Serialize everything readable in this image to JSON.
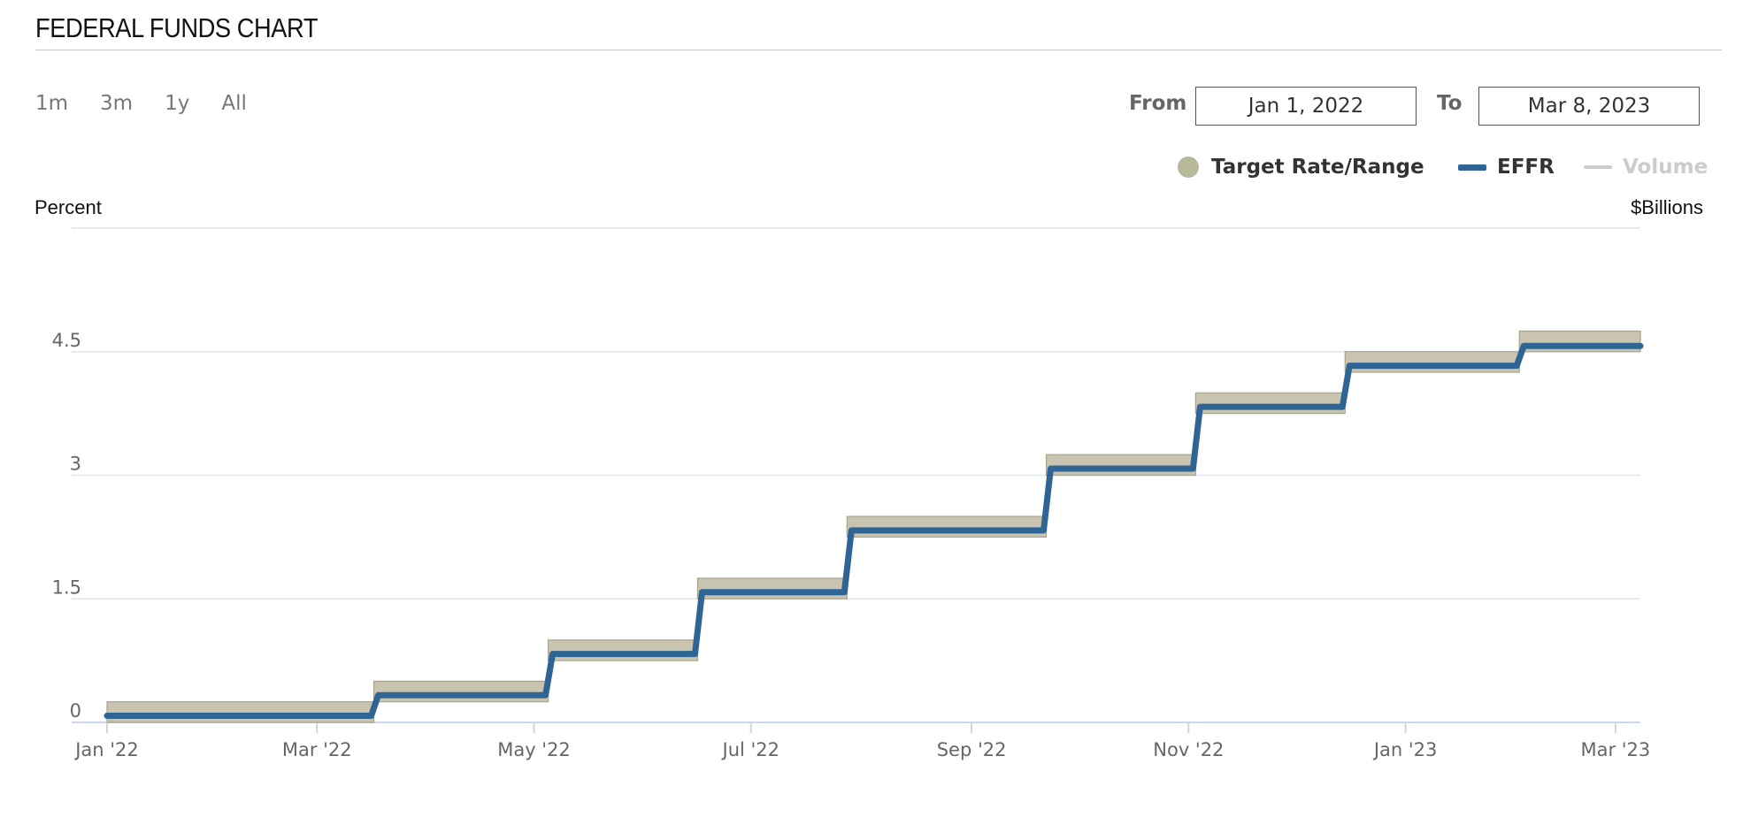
{
  "page": {
    "title": "FEDERAL FUNDS CHART"
  },
  "range_buttons": [
    "1m",
    "3m",
    "1y",
    "All"
  ],
  "date_range": {
    "from_label": "From",
    "from_value": "Jan 1, 2022",
    "to_label": "To",
    "to_value": "Mar 8, 2023"
  },
  "legend": {
    "target": "Target Rate/Range",
    "effr": "EFFR",
    "volume": "Volume"
  },
  "colors": {
    "effr": "#2e6595",
    "target_fill": "#c8c4b0",
    "target_edge": "#a8a48c",
    "grid": "#dfe3ea",
    "axis": "#ccd6eb"
  },
  "chart_data": {
    "type": "line",
    "title": "FEDERAL FUNDS CHART",
    "ylabel_left": "Percent",
    "ylabel_right": "$Billions",
    "y_ticks": [
      0,
      1.5,
      3,
      4.5
    ],
    "ylim": [
      0,
      6
    ],
    "x_range": [
      "2022-01-01",
      "2023-03-08"
    ],
    "x_ticks": [
      {
        "date": "2022-01-01",
        "label": "Jan '22"
      },
      {
        "date": "2022-03-01",
        "label": "Mar '22"
      },
      {
        "date": "2022-05-01",
        "label": "May '22"
      },
      {
        "date": "2022-07-01",
        "label": "Jul '22"
      },
      {
        "date": "2022-09-01",
        "label": "Sep '22"
      },
      {
        "date": "2022-11-01",
        "label": "Nov '22"
      },
      {
        "date": "2023-01-01",
        "label": "Jan '23"
      },
      {
        "date": "2023-03-01",
        "label": "Mar '23"
      }
    ],
    "series": [
      {
        "name": "Target Rate/Range",
        "type": "range",
        "steps": [
          {
            "start": "2022-01-01",
            "low": 0.0,
            "high": 0.25
          },
          {
            "start": "2022-03-17",
            "low": 0.25,
            "high": 0.5
          },
          {
            "start": "2022-05-05",
            "low": 0.75,
            "high": 1.0
          },
          {
            "start": "2022-06-16",
            "low": 1.5,
            "high": 1.75
          },
          {
            "start": "2022-07-28",
            "low": 2.25,
            "high": 2.5
          },
          {
            "start": "2022-09-22",
            "low": 3.0,
            "high": 3.25
          },
          {
            "start": "2022-11-03",
            "low": 3.75,
            "high": 4.0
          },
          {
            "start": "2022-12-15",
            "low": 4.25,
            "high": 4.5
          },
          {
            "start": "2023-02-02",
            "low": 4.5,
            "high": 4.75
          }
        ]
      },
      {
        "name": "EFFR",
        "type": "step",
        "steps": [
          {
            "start": "2022-01-01",
            "value": 0.08
          },
          {
            "start": "2022-03-17",
            "value": 0.33
          },
          {
            "start": "2022-05-05",
            "value": 0.83
          },
          {
            "start": "2022-06-16",
            "value": 1.58
          },
          {
            "start": "2022-07-28",
            "value": 2.33
          },
          {
            "start": "2022-09-22",
            "value": 3.08
          },
          {
            "start": "2022-11-03",
            "value": 3.83
          },
          {
            "start": "2022-12-15",
            "value": 4.33
          },
          {
            "start": "2023-02-02",
            "value": 4.57
          }
        ]
      },
      {
        "name": "Volume",
        "visible": false
      }
    ]
  }
}
